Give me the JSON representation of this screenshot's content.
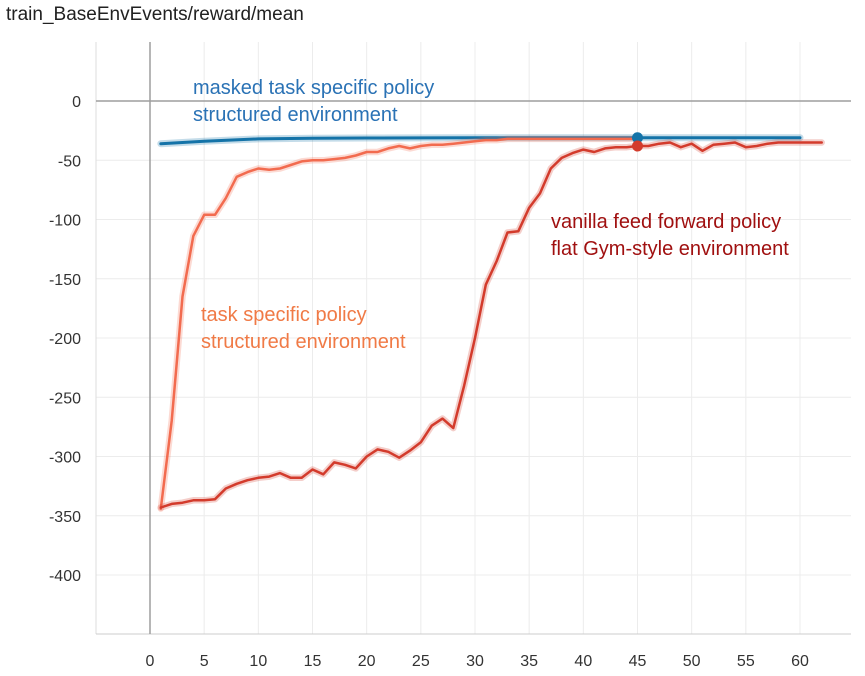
{
  "chart_data": {
    "type": "line",
    "title": "train_BaseEnvEvents/reward/mean",
    "xlim": [
      -4.5,
      65.5
    ],
    "ylim": [
      -445,
      50
    ],
    "x_ticks": [
      0,
      5,
      10,
      15,
      20,
      25,
      30,
      35,
      40,
      45,
      50,
      55,
      60
    ],
    "y_ticks": [
      0,
      -50,
      -100,
      -150,
      -200,
      -250,
      -300,
      -350,
      -400
    ],
    "grid": true,
    "series": [
      {
        "color": "#1473a8",
        "x": [
          1,
          5,
          10,
          15,
          20,
          25,
          30,
          35,
          40,
          45,
          50,
          55,
          60
        ],
        "values": [
          -36,
          -34,
          -32,
          -31.5,
          -31.2,
          -31.1,
          -31,
          -31,
          -31,
          -31,
          -31,
          -31,
          -31
        ]
      },
      {
        "color": "#f26b4f",
        "x": [
          1,
          2,
          3,
          4,
          5,
          6,
          7,
          8,
          9,
          10,
          11,
          12,
          13,
          14,
          15,
          16,
          17,
          18,
          19,
          20,
          21,
          22,
          23,
          24,
          25,
          26,
          27,
          28,
          29,
          30,
          31,
          32,
          33,
          34,
          35,
          36,
          37,
          38,
          39,
          40,
          41,
          42,
          43,
          44,
          45
        ],
        "values": [
          -344,
          -270,
          -165,
          -114,
          -96,
          -96,
          -82,
          -64,
          -60,
          -57,
          -58,
          -57,
          -54,
          -51,
          -50,
          -50,
          -49,
          -48,
          -46,
          -43,
          -43,
          -40,
          -38,
          -40,
          -38,
          -37,
          -37,
          -36,
          -35,
          -34,
          -33,
          -33,
          -32,
          -32,
          -32,
          -32,
          -32,
          -32,
          -32,
          -32,
          -32,
          -32,
          -32,
          -32,
          -32
        ]
      },
      {
        "color": "#d33b2c",
        "x": [
          1,
          2,
          3,
          4,
          5,
          6,
          7,
          8,
          9,
          10,
          11,
          12,
          13,
          14,
          15,
          16,
          17,
          18,
          19,
          20,
          21,
          22,
          23,
          24,
          25,
          26,
          27,
          28,
          29,
          30,
          31,
          32,
          33,
          34,
          35,
          36,
          37,
          38,
          39,
          40,
          41,
          42,
          43,
          44,
          45,
          46,
          47,
          48,
          49,
          50,
          51,
          52,
          53,
          54,
          55,
          56,
          57,
          58,
          59,
          60,
          61,
          62
        ],
        "values": [
          -343,
          -340,
          -339,
          -337,
          -337,
          -336,
          -327,
          -323,
          -320,
          -318,
          -317,
          -314,
          -318,
          -318,
          -311,
          -315,
          -305,
          -307,
          -310,
          -300,
          -294,
          -296,
          -301,
          -295,
          -288,
          -274,
          -268,
          -276,
          -240,
          -200,
          -155,
          -135,
          -111,
          -110,
          -90,
          -78,
          -57,
          -48,
          -44,
          -41,
          -43,
          -40,
          -39,
          -39,
          -38,
          -38,
          -36,
          -35,
          -39,
          -36,
          -42,
          -37,
          -36,
          -35,
          -39,
          -38,
          -36,
          -35,
          -35,
          -35,
          -35,
          -35
        ]
      }
    ],
    "highlight_points": [
      {
        "x": 45,
        "y": -31,
        "color": "#1473a8"
      },
      {
        "x": 45,
        "y": -38,
        "color": "#d33b2c"
      }
    ],
    "annotations": [
      {
        "lines": [
          "masked task specific policy",
          "structured environment"
        ],
        "color": "#2a72b5"
      },
      {
        "lines": [
          "task specific policy",
          "structured environment"
        ],
        "color": "#f07a46"
      },
      {
        "lines": [
          "vanilla feed forward policy",
          "flat Gym-style environment"
        ],
        "color": "#a01010"
      }
    ]
  }
}
